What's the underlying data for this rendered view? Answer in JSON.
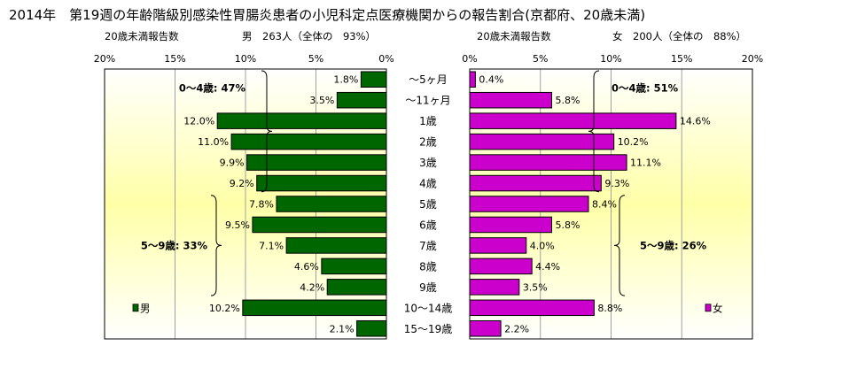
{
  "title": "2014年　第19週の年齢階級別感染性胃腸炎患者の小児科定点医療機関からの報告割合(京都府、20歳未満)",
  "chart_data": {
    "type": "bar",
    "orientation": "horizontal",
    "layout": "population-pyramid",
    "categories": [
      "～5ヶ月",
      "～11ヶ月",
      "1歳",
      "2歳",
      "3歳",
      "4歳",
      "5歳",
      "6歳",
      "7歳",
      "8歳",
      "9歳",
      "10～14歳",
      "15～19歳"
    ],
    "xlim": [
      0,
      20
    ],
    "x_ticks": [
      "0%",
      "5%",
      "10%",
      "15%",
      "20%"
    ],
    "grid": "vertical",
    "series": [
      {
        "name": "男",
        "legend_label": "男",
        "side": "left",
        "color": "#006600",
        "header_label": "20歳未満報告数",
        "header_summary": "男　263人（全体の　93%）",
        "values": [
          1.8,
          3.5,
          12.0,
          11.0,
          9.9,
          9.2,
          7.8,
          9.5,
          7.1,
          4.6,
          4.2,
          10.2,
          2.1
        ],
        "value_labels": [
          "1.8%",
          "3.5%",
          "12.0%",
          "11.0%",
          "9.9%",
          "9.2%",
          "7.8%",
          "9.5%",
          "7.1%",
          "4.6%",
          "4.2%",
          "10.2%",
          "2.1%"
        ],
        "groups": [
          {
            "label": "0～4歳: 47%",
            "from": 0,
            "to": 5
          },
          {
            "label": "5～9歳: 33%",
            "from": 6,
            "to": 10
          }
        ]
      },
      {
        "name": "女",
        "legend_label": "女",
        "side": "right",
        "color": "#CC00CC",
        "header_label": "20歳未満報告数",
        "header_summary": "女　200人（全体の　88%）",
        "values": [
          0.4,
          5.8,
          14.6,
          10.2,
          11.1,
          9.3,
          8.4,
          5.8,
          4.0,
          4.4,
          3.5,
          8.8,
          2.2
        ],
        "value_labels": [
          "0.4%",
          "5.8%",
          "14.6%",
          "10.2%",
          "11.1%",
          "9.3%",
          "8.4%",
          "5.8%",
          "4.0%",
          "4.4%",
          "3.5%",
          "8.8%",
          "2.2%"
        ],
        "groups": [
          {
            "label": "0～4歳: 51%",
            "from": 0,
            "to": 5
          },
          {
            "label": "5～9歳: 26%",
            "from": 6,
            "to": 10
          }
        ]
      }
    ],
    "colors": {
      "plot_gradient_edge": "#FFFFFF",
      "plot_gradient_center": "#FFFFA8",
      "grid": "#A0A0A0",
      "border": "#000000"
    }
  }
}
